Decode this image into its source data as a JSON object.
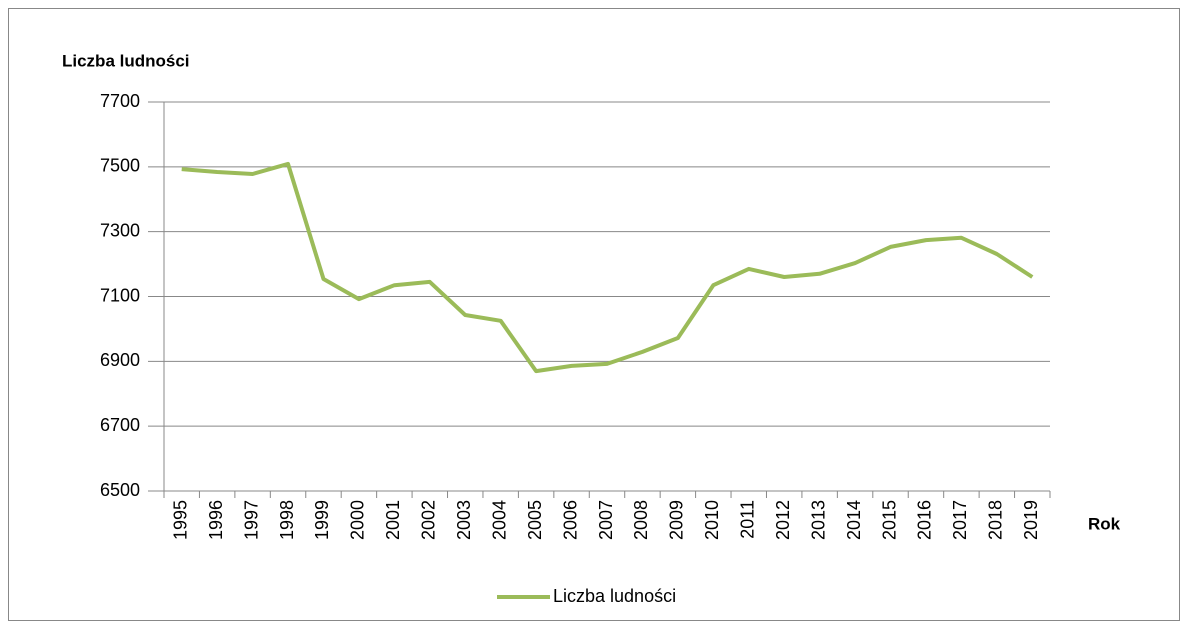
{
  "chart_data": {
    "type": "line",
    "y_label": "Liczba ludności",
    "x_label": "Rok",
    "categories": [
      "1995",
      "1996",
      "1997",
      "1998",
      "1999",
      "2000",
      "2001",
      "2002",
      "2003",
      "2004",
      "2005",
      "2006",
      "2007",
      "2008",
      "2009",
      "2010",
      "2011",
      "2012",
      "2013",
      "2014",
      "2015",
      "2016",
      "2017",
      "2018",
      "2019"
    ],
    "series": [
      {
        "name": "Liczba ludności",
        "color": "#9bbb59",
        "values": [
          7493,
          7484,
          7478,
          7509,
          7154,
          7092,
          7135,
          7145,
          7043,
          7025,
          6870,
          6886,
          6892,
          6929,
          6972,
          7135,
          7185,
          7160,
          7170,
          7203,
          7253,
          7274,
          7281,
          7231,
          7160
        ]
      }
    ],
    "ylim": [
      6500,
      7700
    ],
    "yticks": [
      6500,
      6700,
      6900,
      7100,
      7300,
      7500,
      7700
    ],
    "grid": true,
    "legend": "bottom"
  }
}
